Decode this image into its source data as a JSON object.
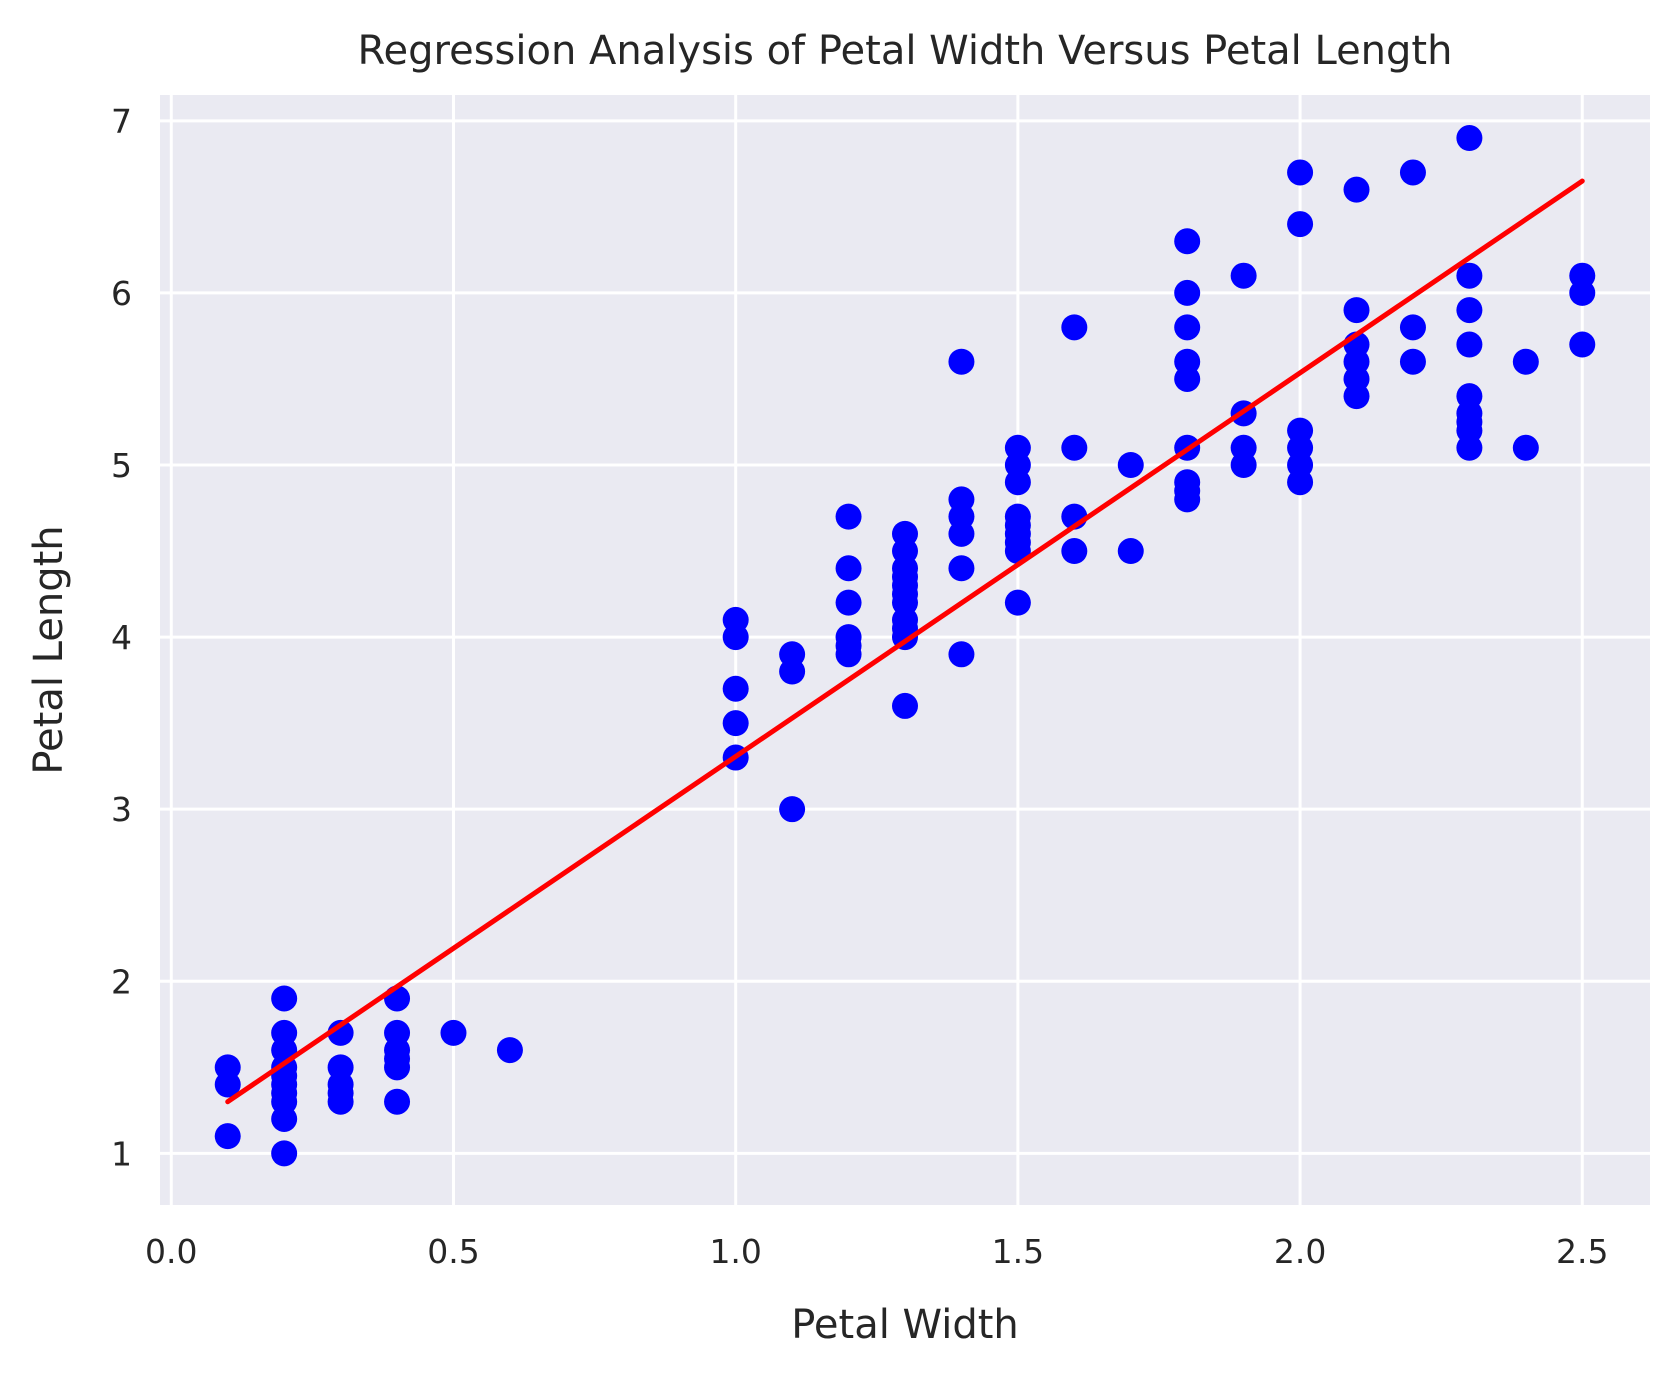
{
  "chart_data": {
    "type": "scatter",
    "title": "Regression Analysis of Petal Width Versus Petal Length",
    "xlabel": "Petal Width",
    "ylabel": "Petal Length",
    "xlim": [
      -0.02,
      2.62
    ],
    "ylim": [
      0.7,
      7.15
    ],
    "xticks": [
      0.0,
      0.5,
      1.0,
      1.5,
      2.0,
      2.5
    ],
    "xtick_labels": [
      "0.0",
      "0.5",
      "1.0",
      "1.5",
      "2.0",
      "2.5"
    ],
    "yticks": [
      1,
      2,
      3,
      4,
      5,
      6,
      7
    ],
    "ytick_labels": [
      "1",
      "2",
      "3",
      "4",
      "5",
      "6",
      "7"
    ],
    "grid": true,
    "background_color": "#eaeaf2",
    "grid_color": "#ffffff",
    "series": [
      {
        "kind": "scatter",
        "color": "#0000ff",
        "x": [
          0.1,
          0.1,
          0.1,
          0.2,
          0.2,
          0.2,
          0.2,
          0.2,
          0.2,
          0.2,
          0.2,
          0.2,
          0.2,
          0.3,
          0.3,
          0.3,
          0.3,
          0.3,
          0.4,
          0.4,
          0.4,
          0.4,
          0.4,
          0.4,
          0.5,
          0.6,
          1.0,
          1.0,
          1.0,
          1.0,
          1.0,
          1.1,
          1.1,
          1.1,
          1.2,
          1.2,
          1.2,
          1.2,
          1.2,
          1.2,
          1.3,
          1.3,
          1.3,
          1.3,
          1.3,
          1.3,
          1.3,
          1.3,
          1.3,
          1.3,
          1.3,
          1.4,
          1.4,
          1.4,
          1.4,
          1.4,
          1.4,
          1.5,
          1.5,
          1.5,
          1.5,
          1.5,
          1.5,
          1.5,
          1.5,
          1.5,
          1.6,
          1.6,
          1.6,
          1.6,
          1.7,
          1.7,
          1.8,
          1.8,
          1.8,
          1.8,
          1.8,
          1.8,
          1.8,
          1.8,
          1.8,
          1.9,
          1.9,
          1.9,
          1.9,
          2.0,
          2.0,
          2.0,
          2.0,
          2.0,
          2.0,
          2.1,
          2.1,
          2.1,
          2.1,
          2.1,
          2.1,
          2.2,
          2.2,
          2.2,
          2.3,
          2.3,
          2.3,
          2.3,
          2.3,
          2.3,
          2.3,
          2.3,
          2.3,
          2.4,
          2.4,
          2.5,
          2.5,
          2.5
        ],
        "y": [
          1.1,
          1.4,
          1.5,
          1.0,
          1.2,
          1.3,
          1.4,
          1.5,
          1.6,
          1.7,
          1.9,
          1.35,
          1.45,
          1.3,
          1.4,
          1.5,
          1.7,
          1.35,
          1.3,
          1.5,
          1.6,
          1.7,
          1.9,
          1.55,
          1.7,
          1.6,
          3.3,
          3.5,
          3.7,
          4.0,
          4.1,
          3.0,
          3.8,
          3.9,
          3.9,
          4.0,
          4.2,
          4.4,
          4.7,
          3.95,
          3.6,
          4.0,
          4.1,
          4.2,
          4.3,
          4.4,
          4.5,
          4.6,
          4.05,
          4.25,
          4.35,
          3.9,
          4.4,
          4.6,
          4.7,
          4.8,
          5.6,
          4.2,
          4.5,
          4.6,
          4.7,
          4.9,
          5.0,
          5.1,
          4.55,
          4.65,
          4.5,
          4.7,
          5.1,
          5.8,
          4.5,
          5.0,
          4.8,
          4.9,
          5.1,
          5.5,
          5.6,
          5.8,
          6.0,
          6.3,
          4.85,
          5.0,
          5.1,
          5.3,
          6.1,
          4.9,
          5.0,
          5.1,
          5.2,
          6.4,
          6.7,
          5.4,
          5.5,
          5.6,
          5.7,
          5.9,
          6.6,
          5.6,
          5.8,
          6.7,
          5.1,
          5.2,
          5.3,
          5.4,
          5.7,
          5.9,
          6.1,
          6.9,
          5.25,
          5.1,
          5.6,
          5.7,
          6.0,
          6.1
        ]
      },
      {
        "kind": "line",
        "color": "#ff0000",
        "x": [
          0.1,
          2.5
        ],
        "y": [
          1.3,
          6.65
        ]
      }
    ]
  }
}
